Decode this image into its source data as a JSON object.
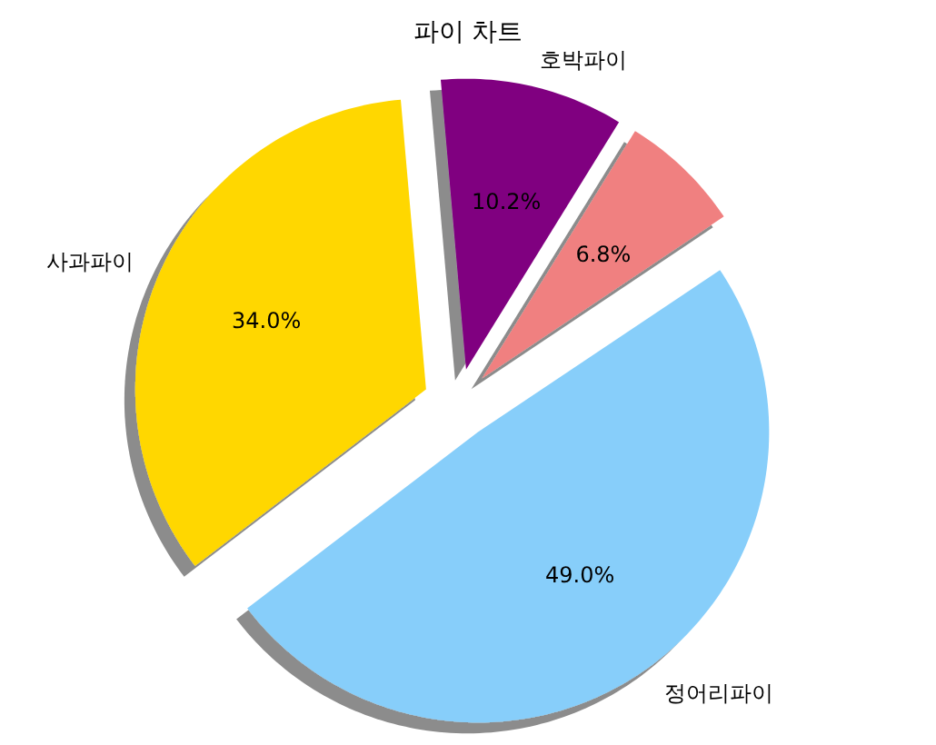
{
  "chart_data": {
    "type": "pie",
    "title": "파이 차트",
    "categories": [
      "사과파이",
      "호박파이",
      null,
      "정어리파이"
    ],
    "values": [
      34.0,
      10.2,
      6.8,
      49.0
    ],
    "colors": [
      "#ffd700",
      "#800080",
      "#f08080",
      "#87cefa"
    ],
    "value_labels": [
      "34.0%",
      "10.2%",
      "6.8%",
      "49.0%"
    ]
  }
}
